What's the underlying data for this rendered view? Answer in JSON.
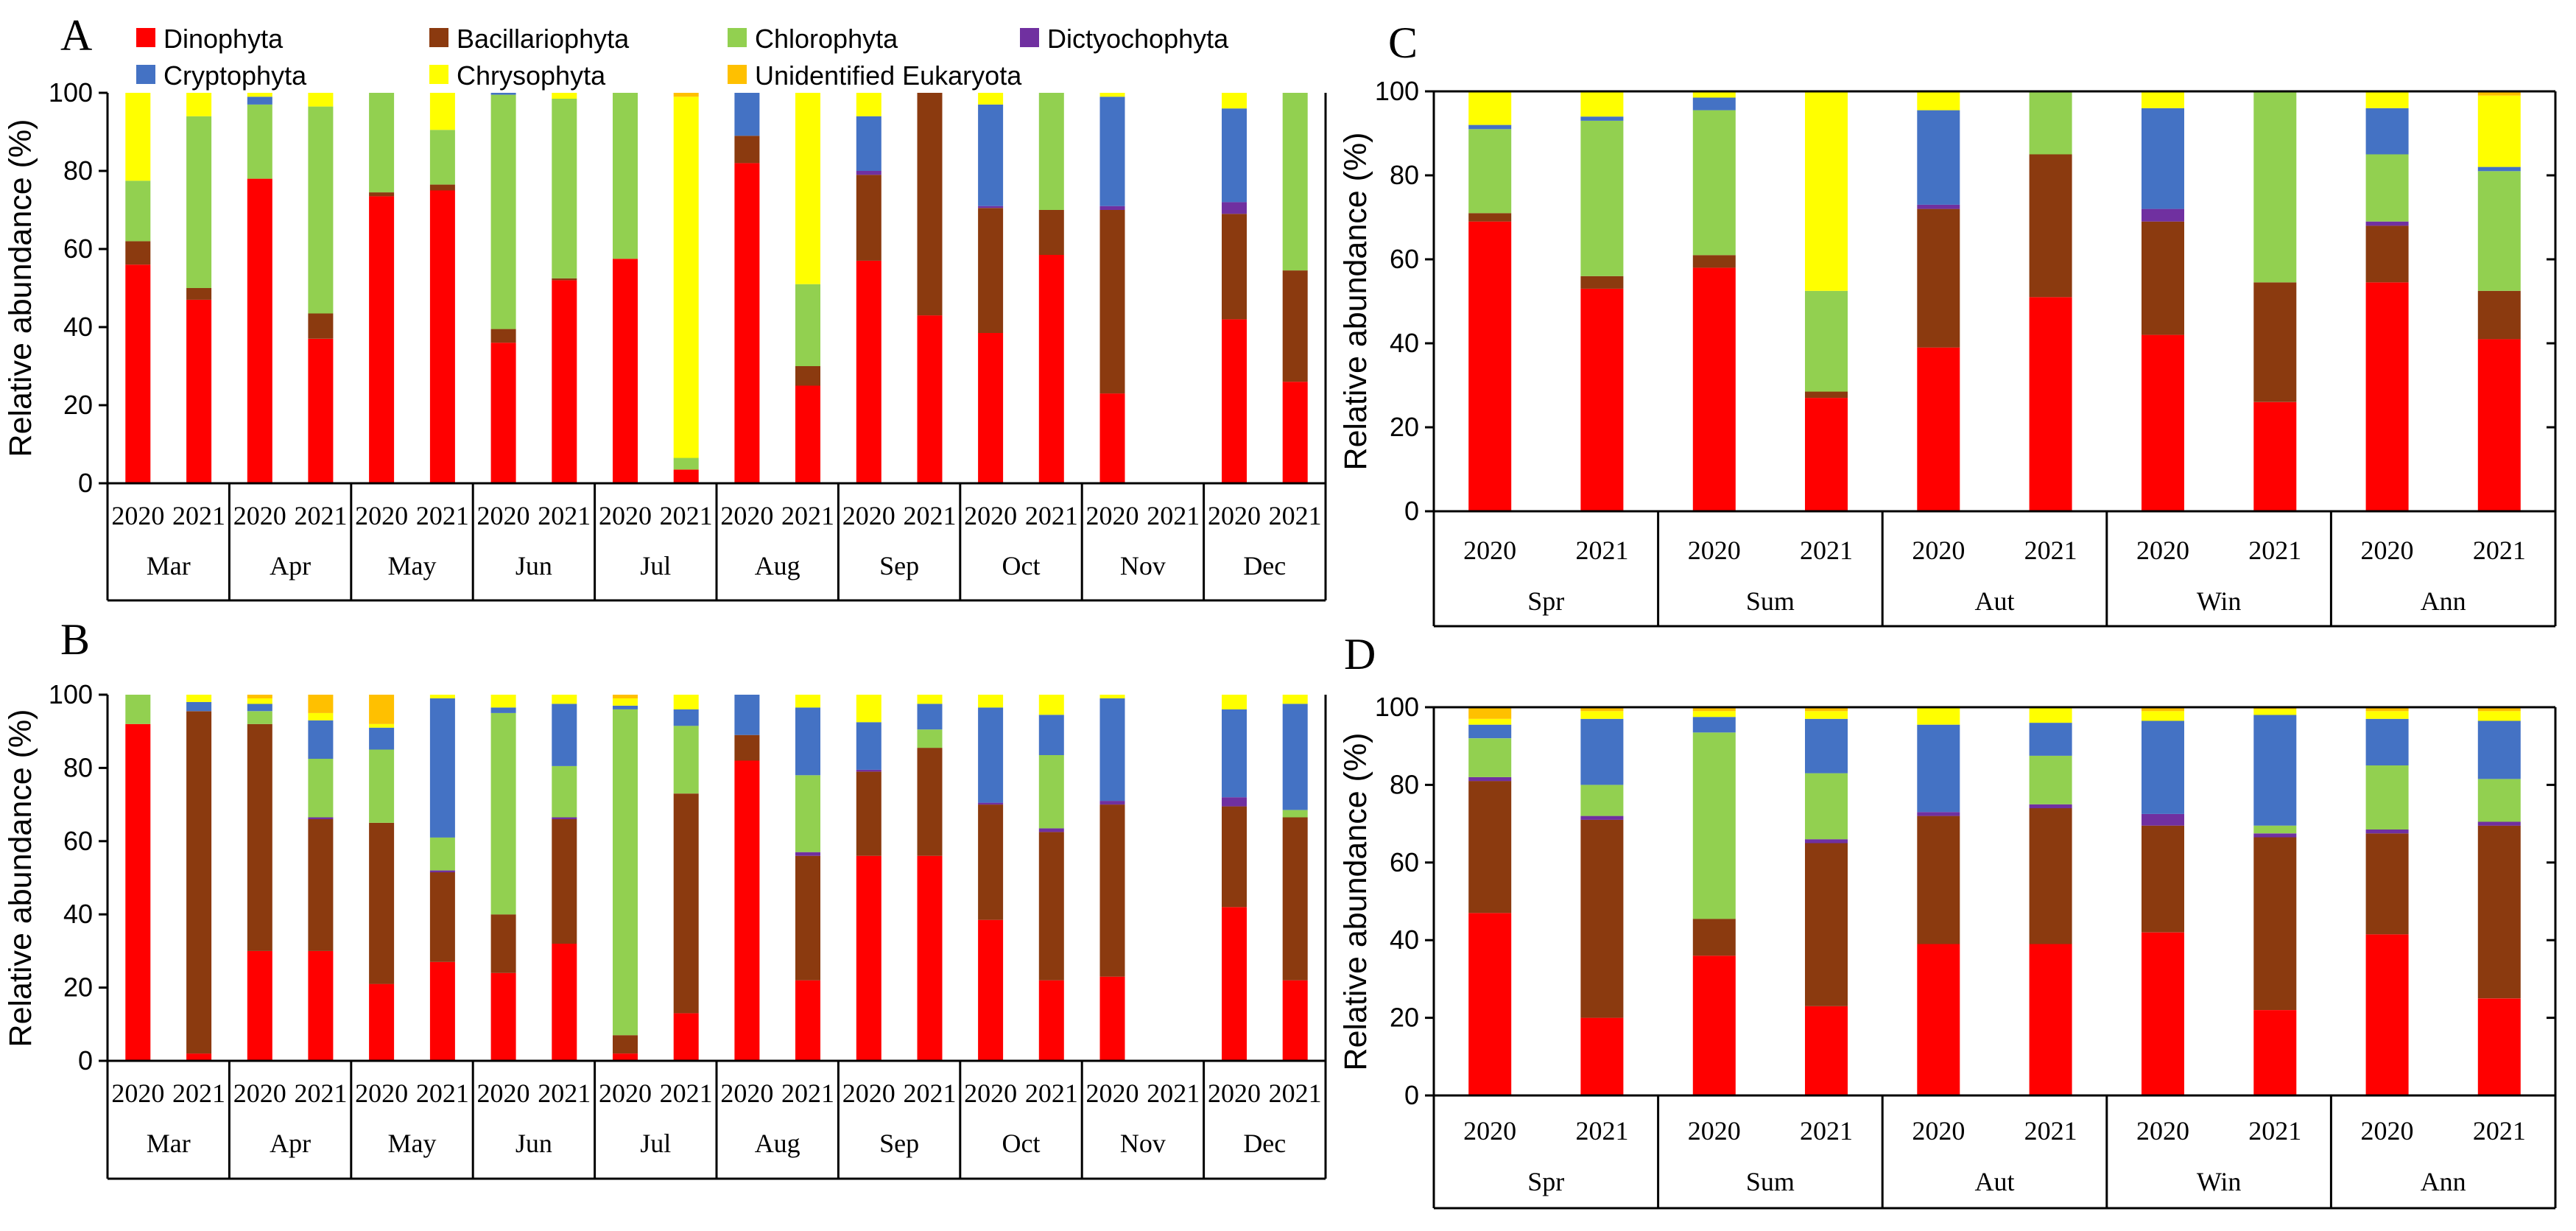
{
  "legend": [
    {
      "name": "Dinophyta",
      "color": "#ff0000"
    },
    {
      "name": "Bacillariophyta",
      "color": "#8b3a0f"
    },
    {
      "name": "Chlorophyta",
      "color": "#92d050"
    },
    {
      "name": "Dictyochophyta",
      "color": "#7030a0"
    },
    {
      "name": "Cryptophyta",
      "color": "#4472c4"
    },
    {
      "name": "Chrysophyta",
      "color": "#ffff00"
    },
    {
      "name": "Unidentified Eukaryota",
      "color": "#ffc000"
    }
  ],
  "chart_data": [
    {
      "panel": "A",
      "type": "bar",
      "stacked": true,
      "ylabel": "Relative abundance (%)",
      "ylim": [
        0,
        100
      ],
      "yticks": [
        0,
        20,
        40,
        60,
        80,
        100
      ],
      "groups": [
        "Mar",
        "Apr",
        "May",
        "Jun",
        "Jul",
        "Aug",
        "Sep",
        "Oct",
        "Nov",
        "Dec"
      ],
      "subcategories": [
        "2020",
        "2021"
      ],
      "series_order": [
        "Dinophyta",
        "Bacillariophyta",
        "Dictyochophyta",
        "Chlorophyta",
        "Cryptophyta",
        "Chrysophyta",
        "Unidentified Eukaryota"
      ],
      "bars": [
        [
          56,
          6,
          0,
          15.5,
          0,
          22.5,
          0
        ],
        [
          47,
          3,
          0,
          44,
          0,
          6,
          0
        ],
        [
          78,
          0,
          0,
          19,
          2,
          1,
          0
        ],
        [
          37,
          6.5,
          0,
          53,
          0,
          3.5,
          0
        ],
        [
          73.5,
          1,
          0,
          25.5,
          0,
          0,
          0
        ],
        [
          75,
          1.5,
          0,
          14,
          0,
          9.5,
          0
        ],
        [
          36,
          3.5,
          0,
          60,
          0.5,
          0,
          0
        ],
        [
          52,
          0.5,
          0,
          46,
          0,
          1.5,
          0
        ],
        [
          57.5,
          0,
          0,
          42.5,
          0,
          0,
          0
        ],
        [
          3.5,
          0,
          0,
          3,
          0,
          92.5,
          1
        ],
        [
          82,
          7,
          0,
          0,
          11,
          0,
          0
        ],
        [
          25,
          5,
          0,
          21,
          0,
          49,
          0
        ],
        [
          57,
          22,
          1,
          0,
          14,
          6,
          0
        ],
        [
          43,
          57,
          0,
          0,
          0,
          0,
          0
        ],
        [
          38.5,
          32,
          0.5,
          0,
          26,
          3,
          0
        ],
        [
          58.5,
          11.5,
          0,
          30,
          0,
          0,
          0
        ],
        [
          23,
          47,
          1,
          0,
          28,
          1,
          0
        ],
        [
          0,
          0,
          0,
          0,
          0,
          0,
          0
        ],
        [
          42,
          27,
          3,
          0,
          24,
          4,
          0
        ],
        [
          26,
          28.5,
          0,
          45.5,
          0,
          0,
          0
        ]
      ]
    },
    {
      "panel": "B",
      "type": "bar",
      "stacked": true,
      "ylabel": "Relative abundance (%)",
      "ylim": [
        0,
        100
      ],
      "yticks": [
        0,
        20,
        40,
        60,
        80,
        100
      ],
      "groups": [
        "Mar",
        "Apr",
        "May",
        "Jun",
        "Jul",
        "Aug",
        "Sep",
        "Oct",
        "Nov",
        "Dec"
      ],
      "subcategories": [
        "2020",
        "2021"
      ],
      "series_order": [
        "Dinophyta",
        "Bacillariophyta",
        "Dictyochophyta",
        "Chlorophyta",
        "Cryptophyta",
        "Chrysophyta",
        "Unidentified Eukaryota"
      ],
      "bars": [
        [
          92,
          0,
          0,
          8,
          0,
          0,
          0
        ],
        [
          2,
          93.5,
          0,
          0,
          2.5,
          2,
          0
        ],
        [
          30,
          62,
          0,
          3.5,
          2,
          1.5,
          1
        ],
        [
          30,
          36,
          0.5,
          16,
          10.5,
          2,
          5
        ],
        [
          21,
          44,
          0,
          20,
          6,
          1,
          8
        ],
        [
          27,
          24.5,
          0.5,
          9,
          38,
          1,
          0
        ],
        [
          24,
          16,
          0,
          55,
          1.5,
          3.5,
          0
        ],
        [
          32,
          34,
          0.5,
          14,
          17,
          2.5,
          0
        ],
        [
          2,
          5,
          0,
          89,
          1,
          2,
          1
        ],
        [
          13,
          60,
          0,
          18.5,
          4.5,
          4,
          0
        ],
        [
          82,
          7,
          0,
          0,
          11,
          0,
          0
        ],
        [
          22,
          34,
          1,
          21,
          18.5,
          3.5,
          0
        ],
        [
          56,
          23,
          0.5,
          0,
          13,
          7.5,
          0
        ],
        [
          56,
          29.5,
          0,
          5,
          7,
          2.5,
          0
        ],
        [
          38.5,
          31.5,
          0.5,
          0,
          26,
          3.5,
          0
        ],
        [
          22,
          40.5,
          1,
          20,
          11,
          5.5,
          0
        ],
        [
          23,
          47,
          1,
          0,
          28,
          1,
          0
        ],
        [
          0,
          0,
          0,
          0,
          0,
          0,
          0
        ],
        [
          42,
          27.5,
          2.5,
          0,
          24,
          4,
          0
        ],
        [
          22,
          44.5,
          0,
          2,
          29,
          2.5,
          0
        ]
      ]
    },
    {
      "panel": "C",
      "type": "bar",
      "stacked": true,
      "ylabel": "Relative abundance (%)",
      "ylim": [
        0,
        100
      ],
      "yticks": [
        0,
        20,
        40,
        60,
        80,
        100
      ],
      "groups": [
        "Spr",
        "Sum",
        "Aut",
        "Win",
        "Ann"
      ],
      "subcategories": [
        "2020",
        "2021"
      ],
      "series_order": [
        "Dinophyta",
        "Bacillariophyta",
        "Dictyochophyta",
        "Chlorophyta",
        "Cryptophyta",
        "Chrysophyta",
        "Unidentified Eukaryota"
      ],
      "bars": [
        [
          69,
          2,
          0,
          20,
          1,
          8,
          0
        ],
        [
          53,
          3,
          0,
          37,
          1,
          6,
          0
        ],
        [
          58,
          3,
          0,
          34.5,
          3,
          1.5,
          0
        ],
        [
          27,
          1.5,
          0,
          24,
          0,
          47.5,
          0
        ],
        [
          39,
          33,
          1,
          0,
          22.5,
          4.5,
          0
        ],
        [
          51,
          34,
          0,
          15,
          0,
          0,
          0
        ],
        [
          42,
          27,
          3,
          0,
          24,
          4,
          0
        ],
        [
          26,
          28.5,
          0,
          45.5,
          0,
          0,
          0
        ],
        [
          54.5,
          13.5,
          1,
          16,
          11,
          4,
          0
        ],
        [
          41,
          11.5,
          0,
          28.5,
          1,
          17,
          1
        ]
      ]
    },
    {
      "panel": "D",
      "type": "bar",
      "stacked": true,
      "ylabel": "Relative abundance (%)",
      "ylim": [
        0,
        100
      ],
      "yticks": [
        0,
        20,
        40,
        60,
        80,
        100
      ],
      "groups": [
        "Spr",
        "Sum",
        "Aut",
        "Win",
        "Ann"
      ],
      "subcategories": [
        "2020",
        "2021"
      ],
      "series_order": [
        "Dinophyta",
        "Bacillariophyta",
        "Dictyochophyta",
        "Chlorophyta",
        "Cryptophyta",
        "Chrysophyta",
        "Unidentified Eukaryota"
      ],
      "bars": [
        [
          47,
          34,
          1,
          10,
          3.5,
          1.5,
          3
        ],
        [
          20,
          51,
          1,
          8,
          17,
          2,
          1
        ],
        [
          36,
          9.5,
          0,
          48,
          4,
          1.5,
          1
        ],
        [
          23,
          42,
          1,
          17,
          14,
          2,
          1
        ],
        [
          39,
          33,
          1,
          0,
          22.5,
          4.5,
          0
        ],
        [
          39,
          35,
          1,
          12.5,
          8.5,
          4,
          0
        ],
        [
          42,
          27.5,
          3,
          0,
          24,
          2.5,
          1
        ],
        [
          22,
          44.5,
          1,
          2,
          28.5,
          1.5,
          0.5
        ],
        [
          41.5,
          26,
          1,
          16.5,
          12,
          2,
          1
        ],
        [
          25,
          44.5,
          1,
          11,
          15,
          2.5,
          1
        ]
      ]
    }
  ]
}
